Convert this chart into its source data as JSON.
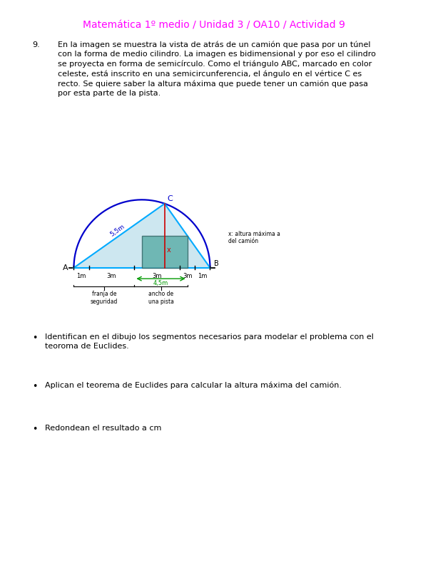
{
  "title": "Matemática 1º medio / Unidad 3 / OA10 / Actividad 9",
  "title_color": "#FF00FF",
  "title_fontsize": 10,
  "problem_number": "9.",
  "problem_text": "En la imagen se muestra la vista de atrás de un camión que pasa por un túnel\ncon la forma de medio cilindro. La imagen es bidimensional y por eso el cilindro\nse proyecta en forma de semicírculo. Como el triángulo ABC, marcado en color\nceleste, está inscrito en una semicircunferencia, el ángulo en el vértice C es\nrecto. Se quiere saber la altura máxima que puede tener un camión que pasa\npor esta parte de la pista.",
  "bullet1": "Identifican en el dibujo los segmentos necesarios para modelar el problema con el\nteoroma de Euclides.",
  "bullet2": "Aplican el teorema de Euclides para calcular la altura máxima del camión.",
  "bullet3": "Redondean el resultado a cm",
  "body_fontsize": 8,
  "bullet_fontsize": 8
}
